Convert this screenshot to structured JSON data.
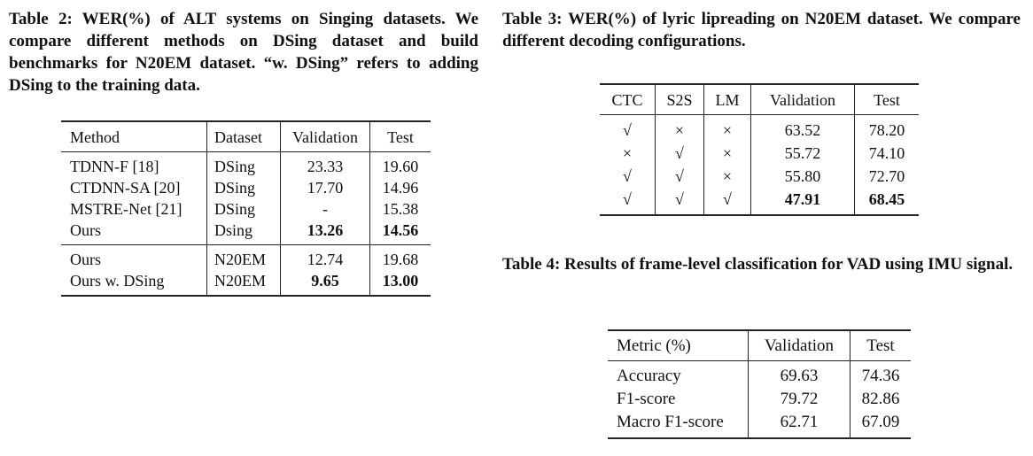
{
  "table2": {
    "caption": "Table 2: WER(%) of ALT systems on Singing datasets. We compare different methods on DSing dataset and build benchmarks for N20EM dataset. “w. DSing” refers to adding DSing to the training data.",
    "headers": [
      "Method",
      "Dataset",
      "Validation",
      "Test"
    ],
    "group1": [
      [
        "TDNN-F [18]",
        "DSing",
        "23.33",
        "19.60"
      ],
      [
        "CTDNN-SA [20]",
        "DSing",
        "17.70",
        "14.96"
      ],
      [
        "MSTRE-Net [21]",
        "DSing",
        "-",
        "15.38"
      ],
      [
        "Ours",
        "Dsing",
        "13.26",
        "14.56"
      ]
    ],
    "group2": [
      [
        "Ours",
        "N20EM",
        "12.74",
        "19.68"
      ],
      [
        "Ours w. DSing",
        "N20EM",
        "9.65",
        "13.00"
      ]
    ]
  },
  "table3": {
    "caption": "Table 3: WER(%) of lyric lipreading on N20EM dataset. We compare different decoding configurations.",
    "headers": [
      "CTC",
      "S2S",
      "LM",
      "Validation",
      "Test"
    ],
    "rows": [
      [
        "√",
        "×",
        "×",
        "63.52",
        "78.20"
      ],
      [
        "×",
        "√",
        "×",
        "55.72",
        "74.10"
      ],
      [
        "√",
        "√",
        "×",
        "55.80",
        "72.70"
      ],
      [
        "√",
        "√",
        "√",
        "47.91",
        "68.45"
      ]
    ]
  },
  "table4": {
    "caption": "Table 4: Results of frame-level classification for VAD using IMU signal.",
    "headers": [
      "Metric (%)",
      "Validation",
      "Test"
    ],
    "rows": [
      [
        "Accuracy",
        "69.63",
        "74.36"
      ],
      [
        "F1-score",
        "79.72",
        "82.86"
      ],
      [
        "Macro F1-score",
        "62.71",
        "67.09"
      ]
    ]
  }
}
